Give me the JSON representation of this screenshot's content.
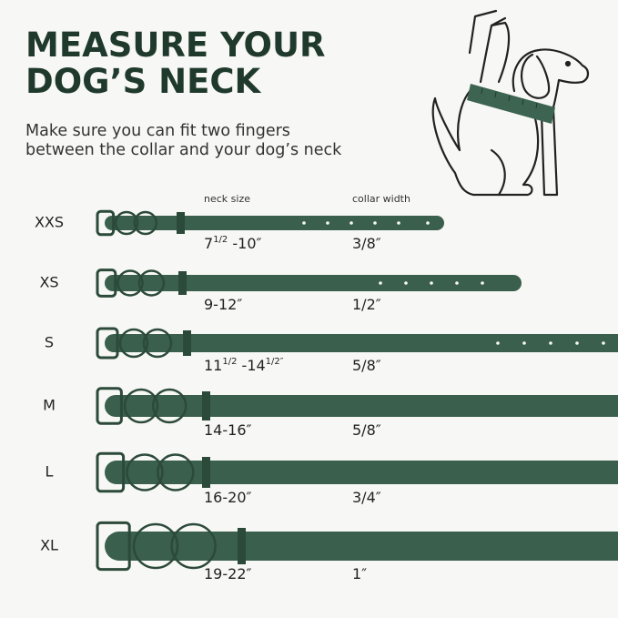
{
  "header": {
    "title": [
      "MEASURE YOUR",
      "DOG’S  NECK"
    ],
    "subtitle": [
      "Make sure you can fit two fingers",
      "between the collar and your dog’s neck"
    ]
  },
  "columns": {
    "neck_size": "neck size",
    "collar_width": "collar width"
  },
  "rows": [
    {
      "size": "XXS",
      "neck_size": [
        {
          "text": "7"
        },
        {
          "sup": "1/2"
        },
        {
          "text": " -10″"
        }
      ],
      "collar_width": "3/8″"
    },
    {
      "size": "XS",
      "neck_size": [
        {
          "text": "9-12″"
        }
      ],
      "collar_width": "1/2″"
    },
    {
      "size": "S",
      "neck_size": [
        {
          "text": "11"
        },
        {
          "sup": "1/2"
        },
        {
          "text": " -14"
        },
        {
          "sup": "1/2″"
        }
      ],
      "collar_width": "5/8″"
    },
    {
      "size": "M",
      "neck_size": [
        {
          "text": "14-16″"
        }
      ],
      "collar_width": "5/8″"
    },
    {
      "size": "L",
      "neck_size": [
        {
          "text": "16-20″"
        }
      ],
      "collar_width": "3/4″"
    },
    {
      "size": "XL",
      "neck_size": [
        {
          "text": "19-22″"
        }
      ],
      "collar_width": "1″"
    }
  ]
}
